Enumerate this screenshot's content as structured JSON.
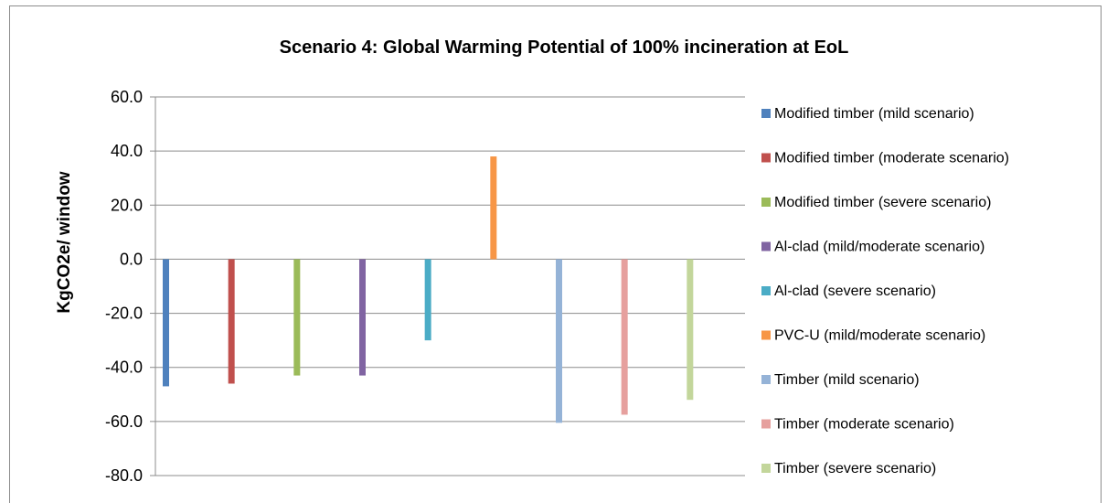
{
  "chart_data": {
    "type": "bar",
    "title": "Scenario  4: Global Warming Potential of 100% incineration at EoL",
    "xlabel": "",
    "ylabel": "KgCO2e/ window",
    "ylim": [
      -80,
      60
    ],
    "yticks": [
      "60.0",
      "40.0",
      "20.0",
      "0.0",
      "-20.0",
      "-40.0",
      "-60.0",
      "-80.0"
    ],
    "grid": true,
    "legend_position": "right",
    "series": [
      {
        "name": "Modified timber (mild scenario)",
        "values": [
          -47.0
        ],
        "color": "#4f81bd"
      },
      {
        "name": "Modified timber (moderate scenario)",
        "values": [
          -46.0
        ],
        "color": "#c0504d"
      },
      {
        "name": "Modified timber (severe scenario)",
        "values": [
          -43.0
        ],
        "color": "#9bbb59"
      },
      {
        "name": "Al-clad (mild/moderate scenario)",
        "values": [
          -43.0
        ],
        "color": "#8064a2"
      },
      {
        "name": "Al-clad (severe scenario)",
        "values": [
          -30.0
        ],
        "color": "#4bacc6"
      },
      {
        "name": "PVC-U (mild/moderate scenario)",
        "values": [
          38.0
        ],
        "color": "#f79646"
      },
      {
        "name": "Timber (mild scenario)",
        "values": [
          -60.5
        ],
        "color": "#95b3d7"
      },
      {
        "name": "Timber  (moderate scenario)",
        "values": [
          -57.5
        ],
        "color": "#e6a09e"
      },
      {
        "name": "Timber (severe scenario)",
        "values": [
          -52.0
        ],
        "color": "#c3d69b"
      }
    ]
  }
}
